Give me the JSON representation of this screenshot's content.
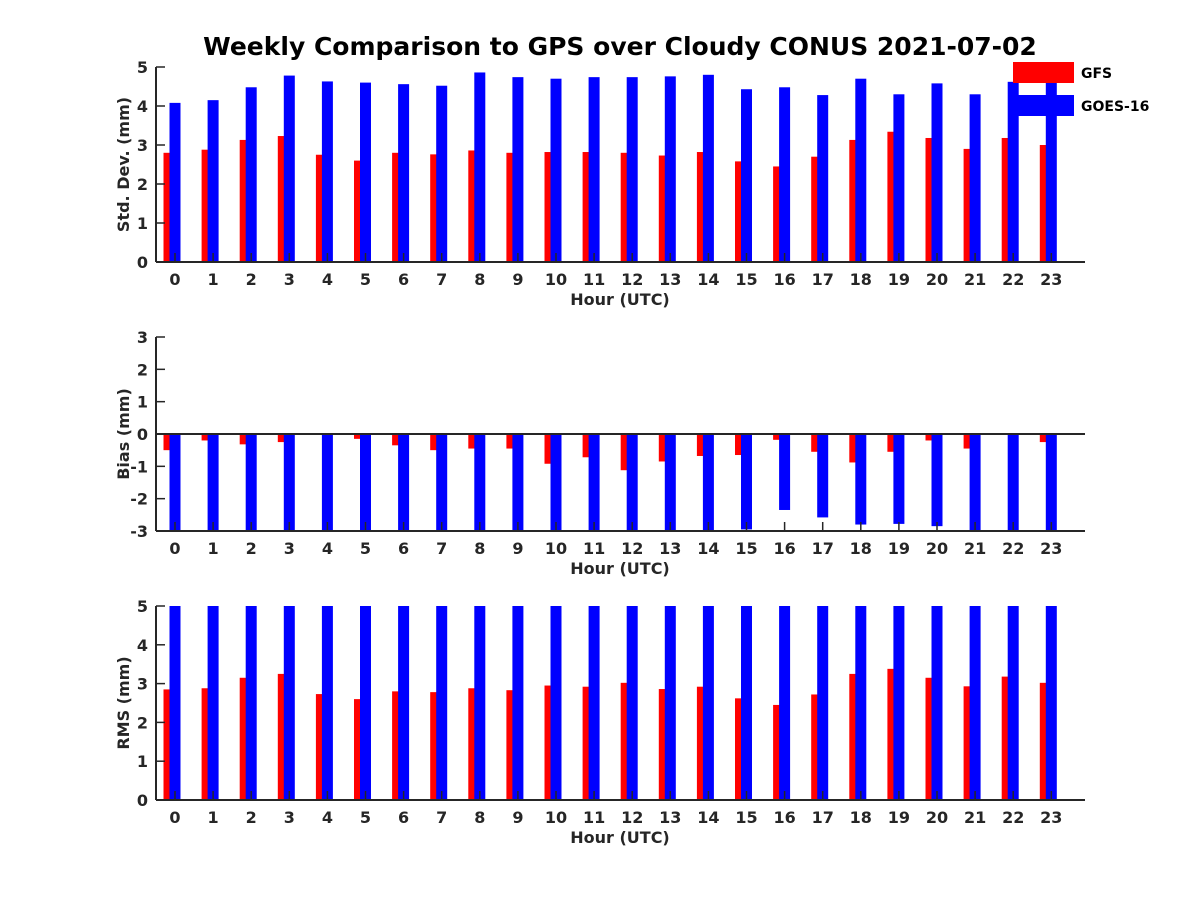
{
  "figure": {
    "title": "Weekly Comparison to GPS over Cloudy CONUS 2021-07-02"
  },
  "legend": {
    "placement": "top-right",
    "entries": [
      {
        "name": "GFS",
        "color": "#ff0000"
      },
      {
        "name": "GOES-16",
        "color": "#0000ff"
      }
    ]
  },
  "colors": {
    "GFS": "#ff0000",
    "GOES-16": "#0000ff"
  },
  "chart_data": [
    {
      "type": "bar",
      "xlabel": "Hour (UTC)",
      "ylabel": "Std. Dev. (mm)",
      "ylim": [
        0,
        5
      ],
      "yticks": [
        0,
        1,
        2,
        3,
        4,
        5
      ],
      "categories": [
        "0",
        "1",
        "2",
        "3",
        "4",
        "5",
        "6",
        "7",
        "8",
        "9",
        "10",
        "11",
        "12",
        "13",
        "14",
        "15",
        "16",
        "17",
        "18",
        "19",
        "20",
        "21",
        "22",
        "23"
      ],
      "series": [
        {
          "name": "GFS",
          "values": [
            2.8,
            2.88,
            3.13,
            3.23,
            2.75,
            2.6,
            2.8,
            2.76,
            2.86,
            2.8,
            2.82,
            2.82,
            2.8,
            2.73,
            2.82,
            2.58,
            2.45,
            2.7,
            3.13,
            3.34,
            3.18,
            2.9,
            3.18,
            3.0
          ]
        },
        {
          "name": "GOES-16",
          "values": [
            4.08,
            4.15,
            4.48,
            4.78,
            4.63,
            4.6,
            4.56,
            4.52,
            4.86,
            4.74,
            4.7,
            4.74,
            4.74,
            4.76,
            4.8,
            4.43,
            4.48,
            4.28,
            4.7,
            4.3,
            4.58,
            4.3,
            4.62,
            4.7
          ]
        }
      ]
    },
    {
      "type": "bar",
      "xlabel": "Hour (UTC)",
      "ylabel": "Bias (mm)",
      "ylim": [
        -3,
        3
      ],
      "yticks": [
        -3,
        -2,
        -1,
        0,
        1,
        2,
        3
      ],
      "categories": [
        "0",
        "1",
        "2",
        "3",
        "4",
        "5",
        "6",
        "7",
        "8",
        "9",
        "10",
        "11",
        "12",
        "13",
        "14",
        "15",
        "16",
        "17",
        "18",
        "19",
        "20",
        "21",
        "22",
        "23"
      ],
      "series": [
        {
          "name": "GFS",
          "values": [
            -0.5,
            -0.2,
            -0.32,
            -0.25,
            -0.03,
            -0.15,
            -0.35,
            -0.5,
            -0.45,
            -0.45,
            -0.92,
            -0.72,
            -1.12,
            -0.85,
            -0.68,
            -0.65,
            -0.18,
            -0.55,
            -0.88,
            -0.55,
            -0.2,
            -0.45,
            -0.03,
            -0.25
          ]
        },
        {
          "name": "GOES-16",
          "values": [
            -3.0,
            -3.0,
            -3.0,
            -3.0,
            -3.0,
            -3.0,
            -3.0,
            -3.0,
            -3.0,
            -3.0,
            -3.0,
            -3.0,
            -3.0,
            -3.0,
            -3.0,
            -2.95,
            -2.35,
            -2.58,
            -2.8,
            -2.78,
            -2.85,
            -3.0,
            -3.0,
            -3.0
          ]
        }
      ]
    },
    {
      "type": "bar",
      "xlabel": "Hour (UTC)",
      "ylabel": "RMS (mm)",
      "ylim": [
        0,
        5
      ],
      "yticks": [
        0,
        1,
        2,
        3,
        4,
        5
      ],
      "categories": [
        "0",
        "1",
        "2",
        "3",
        "4",
        "5",
        "6",
        "7",
        "8",
        "9",
        "10",
        "11",
        "12",
        "13",
        "14",
        "15",
        "16",
        "17",
        "18",
        "19",
        "20",
        "21",
        "22",
        "23"
      ],
      "series": [
        {
          "name": "GFS",
          "values": [
            2.85,
            2.88,
            3.15,
            3.25,
            2.73,
            2.6,
            2.8,
            2.78,
            2.88,
            2.83,
            2.95,
            2.92,
            3.02,
            2.86,
            2.92,
            2.62,
            2.45,
            2.72,
            3.25,
            3.38,
            3.15,
            2.93,
            3.18,
            3.02
          ]
        },
        {
          "name": "GOES-16",
          "values": [
            5,
            5,
            5,
            5,
            5,
            5,
            5,
            5,
            5,
            5,
            5,
            5,
            5,
            5,
            5,
            5,
            5,
            5,
            5,
            5,
            5,
            5,
            5,
            5
          ]
        }
      ]
    }
  ]
}
